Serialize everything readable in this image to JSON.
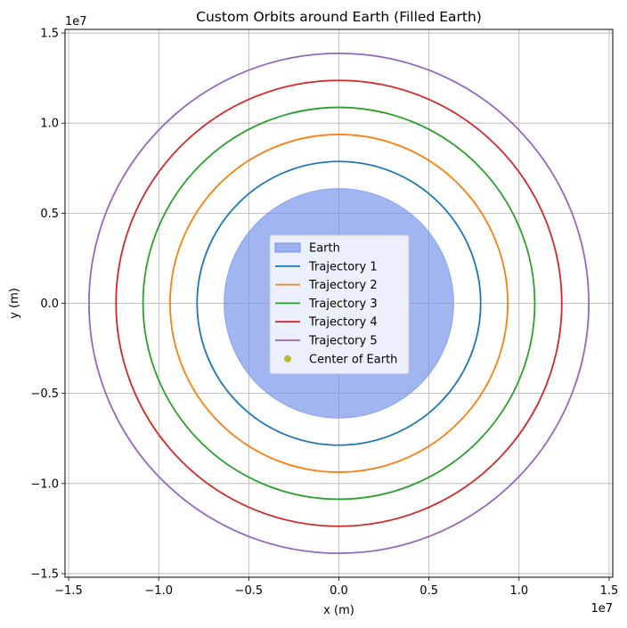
{
  "chart_data": {
    "type": "line",
    "title": "Custom Orbits around Earth (Filled Earth)",
    "xlabel": "x (m)",
    "ylabel": "y (m)",
    "x_exponent": "1e7",
    "y_exponent": "1e7",
    "xlim": [
      -15200000,
      15200000
    ],
    "ylim": [
      -15200000,
      15200000
    ],
    "xticks": [
      -15000000,
      -10000000,
      -5000000,
      0,
      5000000,
      10000000,
      15000000
    ],
    "yticks": [
      -15000000,
      -10000000,
      -5000000,
      0,
      5000000,
      10000000,
      15000000
    ],
    "xtick_labels": [
      "−1.5",
      "−1.0",
      "−0.5",
      "0.0",
      "0.5",
      "1.0",
      "1.5"
    ],
    "ytick_labels": [
      "−1.5",
      "−1.0",
      "−0.5",
      "0.0",
      "0.5",
      "1.0",
      "1.5"
    ],
    "grid": true,
    "legend_position": "center",
    "earth": {
      "name": "Earth",
      "radius": 6371000,
      "fill_color": "#6f8ee8",
      "fill_opacity": 0.65
    },
    "series": [
      {
        "name": "Trajectory 1",
        "shape": "circle",
        "center": [
          0,
          0
        ],
        "radius": 7871000,
        "color": "#1f77b4"
      },
      {
        "name": "Trajectory 2",
        "shape": "circle",
        "center": [
          0,
          0
        ],
        "radius": 9371000,
        "color": "#ff7f0e"
      },
      {
        "name": "Trajectory 3",
        "shape": "circle",
        "center": [
          0,
          0
        ],
        "radius": 10871000,
        "color": "#2ca02c"
      },
      {
        "name": "Trajectory 4",
        "shape": "circle",
        "center": [
          0,
          0
        ],
        "radius": 12371000,
        "color": "#d62728"
      },
      {
        "name": "Trajectory 5",
        "shape": "circle",
        "center": [
          0,
          0
        ],
        "radius": 13871000,
        "color": "#9467bd"
      }
    ],
    "center_point": {
      "name": "Center of Earth",
      "x": 0,
      "y": 0,
      "color": "#bcbd22"
    },
    "legend": [
      "Earth",
      "Trajectory 1",
      "Trajectory 2",
      "Trajectory 3",
      "Trajectory 4",
      "Trajectory 5",
      "Center of Earth"
    ]
  }
}
